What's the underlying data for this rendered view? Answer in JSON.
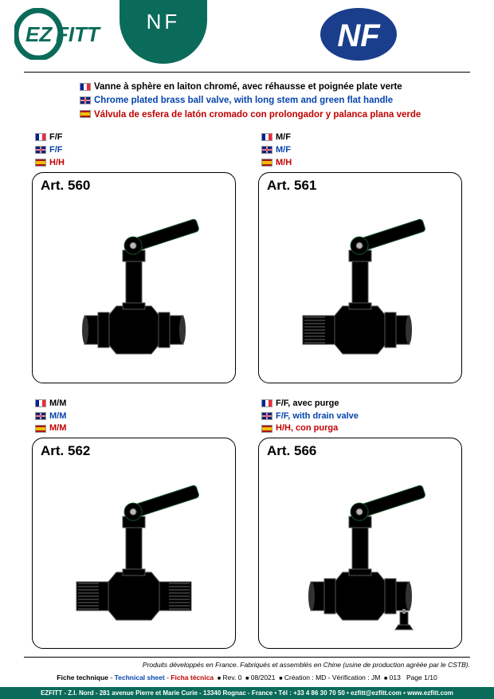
{
  "header": {
    "brand": "EZFITT",
    "nf_label": "NF"
  },
  "descriptions": {
    "fr": "Vanne à sphère en laiton chromé, avec réhausse et poignée plate verte",
    "en": "Chrome plated brass ball valve, with long stem and green flat handle",
    "es": "Válvula de esfera de latón cromado con prolongador y palanca plana verde"
  },
  "products": [
    {
      "art": "Art. 560",
      "fr": "F/F",
      "en": "F/F",
      "es": "H/H",
      "left_thread": "F",
      "right_thread": "F",
      "drain": false
    },
    {
      "art": "Art. 561",
      "fr": "M/F",
      "en": "M/F",
      "es": "M/H",
      "left_thread": "M",
      "right_thread": "F",
      "drain": false
    },
    {
      "art": "Art. 562",
      "fr": "M/M",
      "en": "M/M",
      "es": "M/M",
      "left_thread": "M",
      "right_thread": "M",
      "drain": false
    },
    {
      "art": "Art. 566",
      "fr": "F/F, avec purge",
      "en": "F/F, with drain valve",
      "es": "H/H, con purga",
      "left_thread": "F",
      "right_thread": "F",
      "drain": true
    }
  ],
  "colors": {
    "handle": "#2e9b4f",
    "handle_dark": "#1a6b33",
    "metal_light": "#e8e8e8",
    "metal_mid": "#b8b8b8",
    "metal_dark": "#787878",
    "brand_green": "#0a6b5a",
    "nf_blue": "#1a3e8c"
  },
  "footer": {
    "note": "Produits développés en France. Fabriqués et assemblés en Chine (usine de production agréée par le CSTB).",
    "tech_fr": "Fiche technique",
    "tech_en": "Technical sheet",
    "tech_es": "Ficha técnica",
    "rev": "Rev. 0",
    "date": "08/2021",
    "creation": "Création : MD - Vérification : JM",
    "code": "013",
    "page": "Page 1/10",
    "address": "EZFITT - Z.I. Nord - 281 avenue Pierre et Marie Curie - 13340 Rognac - France • Tél : +33 4 86 30 70 50 • ezfitt@ezfitt.com • www.ezfitt.com"
  }
}
